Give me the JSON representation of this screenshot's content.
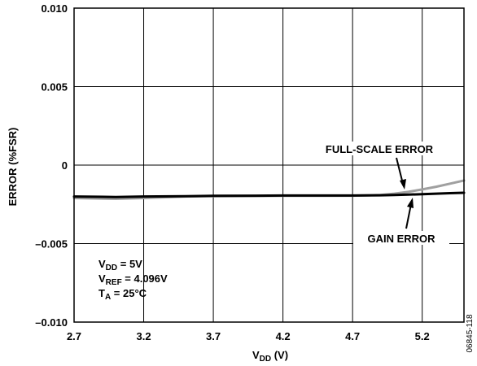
{
  "chart_data": {
    "type": "line",
    "title": "",
    "xlabel": {
      "main": "V",
      "sub": "DD",
      "rest": " (V)"
    },
    "ylabel": "ERROR (%FSR)",
    "xlim": [
      2.7,
      5.5
    ],
    "ylim": [
      -0.01,
      0.01
    ],
    "x_ticks": [
      2.7,
      3.2,
      3.7,
      4.2,
      4.7,
      5.2
    ],
    "x_tick_labels": [
      "2.7",
      "3.2",
      "3.7",
      "4.2",
      "4.7",
      "5.2"
    ],
    "y_ticks": [
      0.01,
      0.005,
      0,
      -0.005,
      -0.01
    ],
    "y_tick_labels": [
      "0.010",
      "0.005",
      "0",
      "–0.005",
      "–0.010"
    ],
    "grid": true,
    "series": [
      {
        "name": "FULL-SCALE ERROR",
        "color": "#a0a0a0",
        "x": [
          2.7,
          3.0,
          3.2,
          3.5,
          3.7,
          4.0,
          4.2,
          4.5,
          4.7,
          4.9,
          5.0,
          5.1,
          5.2,
          5.3,
          5.4,
          5.5
        ],
        "y": [
          -0.0021,
          -0.00215,
          -0.0021,
          -0.002,
          -0.00198,
          -0.00197,
          -0.00196,
          -0.00196,
          -0.00195,
          -0.0019,
          -0.00182,
          -0.0017,
          -0.00155,
          -0.00138,
          -0.00118,
          -0.00098
        ]
      },
      {
        "name": "GAIN ERROR",
        "color": "#000000",
        "x": [
          2.7,
          3.0,
          3.2,
          3.5,
          3.7,
          4.0,
          4.2,
          4.5,
          4.7,
          4.9,
          5.0,
          5.1,
          5.2,
          5.3,
          5.4,
          5.5
        ],
        "y": [
          -0.002,
          -0.00203,
          -0.002,
          -0.00198,
          -0.00196,
          -0.00195,
          -0.00194,
          -0.00194,
          -0.00194,
          -0.00192,
          -0.0019,
          -0.00188,
          -0.00185,
          -0.00182,
          -0.00179,
          -0.00176
        ]
      }
    ],
    "annotations": {
      "full_scale_label": "FULL-SCALE ERROR",
      "gain_label": "GAIN ERROR",
      "conditions": [
        {
          "main": "V",
          "sub": "DD",
          "rest": " = 5V"
        },
        {
          "main": "V",
          "sub": "REF",
          "rest": " = 4.096V"
        },
        {
          "main": "T",
          "sub": "A",
          "rest": " = 25°C"
        }
      ]
    },
    "figure_id": "06845-118"
  }
}
